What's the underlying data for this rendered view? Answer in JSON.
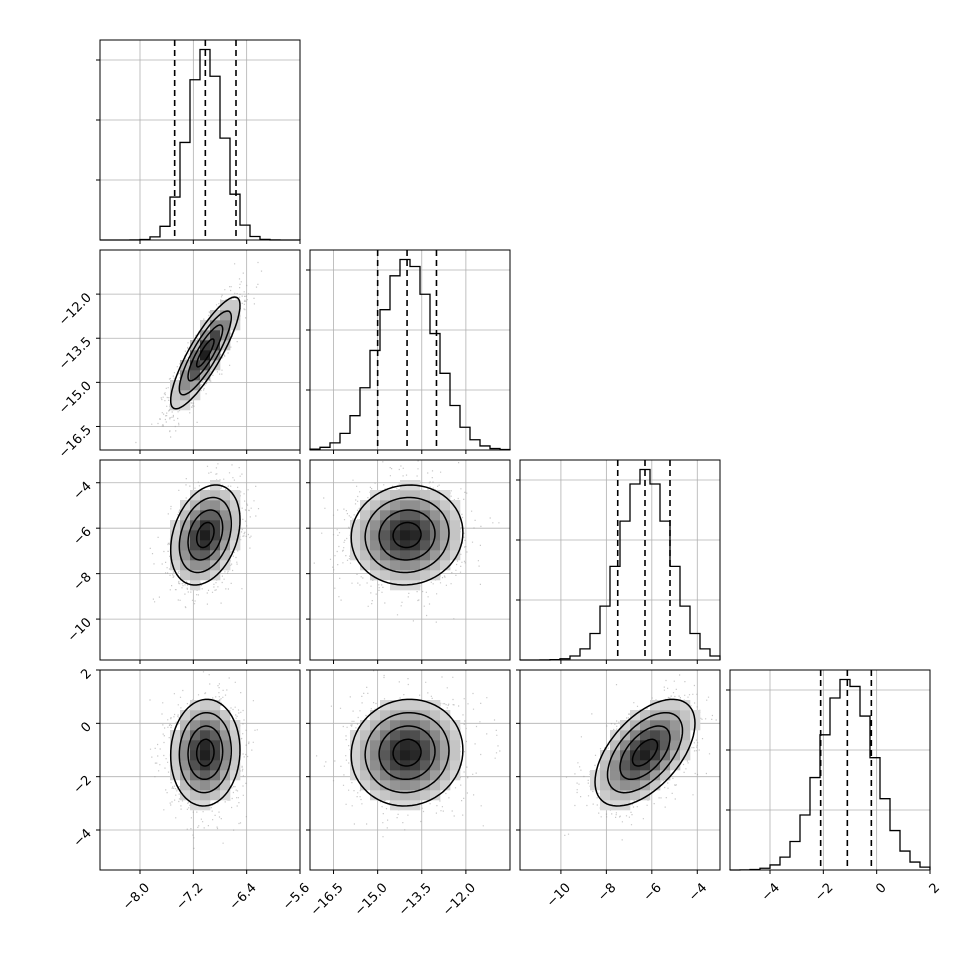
{
  "chart_data": {
    "type": "corner",
    "description_of_layout": "lower-triangular grid; diagonal = 1D histograms, off-diagonal = 2D density with contours",
    "parameters": [
      {
        "index": 0,
        "mean": -7.02,
        "std": 0.26,
        "quantiles": [
          -7.48,
          -7.02,
          -6.56
        ],
        "range": [
          -8.6,
          -5.6
        ],
        "ticks": [
          -8.0,
          -7.2,
          -6.4,
          -5.6
        ],
        "tick_labels": [
          "−8.0",
          "−7.2",
          "−6.4",
          "−5.6"
        ]
      },
      {
        "index": 1,
        "mean": -14.0,
        "std": 0.95,
        "quantiles": [
          -15.0,
          -14.0,
          -13.0
        ],
        "range": [
          -17.3,
          -10.5
        ],
        "ticks": [
          -16.5,
          -15.0,
          -13.5,
          -12.0
        ],
        "tick_labels": [
          "−16.5",
          "−15.0",
          "−13.5",
          "−12.0"
        ]
      },
      {
        "index": 2,
        "mean": -6.3,
        "std": 1.1,
        "quantiles": [
          -7.5,
          -6.3,
          -5.2
        ],
        "range": [
          -11.8,
          -3.0
        ],
        "ticks": [
          -10,
          -8,
          -6,
          -4
        ],
        "tick_labels": [
          "−10",
          "−8",
          "−6",
          "−4"
        ]
      },
      {
        "index": 3,
        "mean": -1.1,
        "std": 1.0,
        "quantiles": [
          -2.1,
          -1.1,
          -0.2
        ],
        "range": [
          -5.5,
          2.0
        ],
        "ticks": [
          -4,
          -2,
          0,
          2
        ],
        "tick_labels": [
          "−4",
          "−2",
          "0",
          "2"
        ]
      }
    ],
    "correlations": {
      "0-1": 0.85,
      "0-2": 0.3,
      "1-2": 0.05,
      "0-3": 0.05,
      "1-3": 0.05,
      "2-3": 0.55
    },
    "contour_levels_sigma": [
      0.5,
      1.0,
      1.5,
      2.0
    ],
    "histogram_bins": 20,
    "quantile_lines": "dashed",
    "grid": true
  }
}
